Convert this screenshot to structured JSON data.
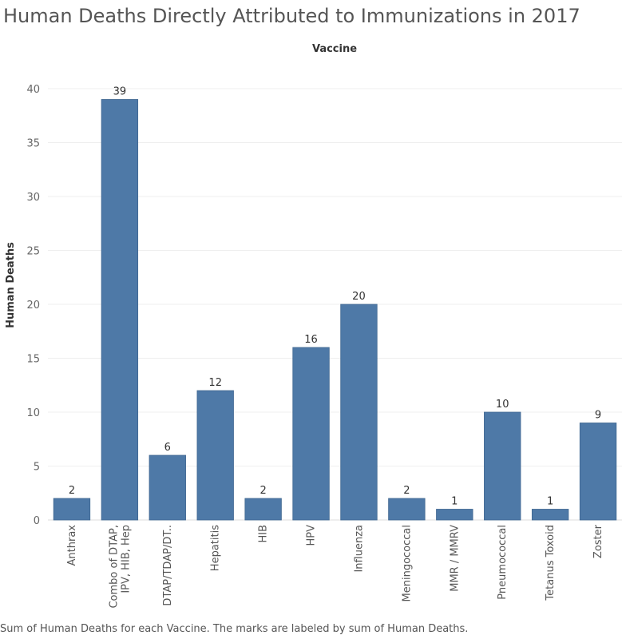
{
  "chart_data": {
    "type": "bar",
    "title": "Human Deaths Directly Attributed to Immunizations in 2017",
    "xlabel": "Vaccine",
    "ylabel": "Human Deaths",
    "categories": [
      "Anthrax",
      "Combo of DTAP,\nIPV, HIB, Hep",
      "DTAP/TDAP/DT..",
      "Hepatitis",
      "HIB",
      "HPV",
      "Influenza",
      "Meningococcal",
      "MMR / MMRV",
      "Pneumococcal",
      "Tetanus Toxoid",
      "Zoster"
    ],
    "values": [
      2,
      39,
      6,
      12,
      2,
      16,
      20,
      2,
      1,
      10,
      1,
      9
    ],
    "ylim": [
      0,
      42
    ],
    "yticks": [
      0,
      5,
      10,
      15,
      20,
      25,
      30,
      35,
      40
    ],
    "grid": true,
    "bar_color": "#4e79a7",
    "caption": "Sum of Human Deaths for each Vaccine.  The marks are labeled by sum of Human Deaths."
  }
}
